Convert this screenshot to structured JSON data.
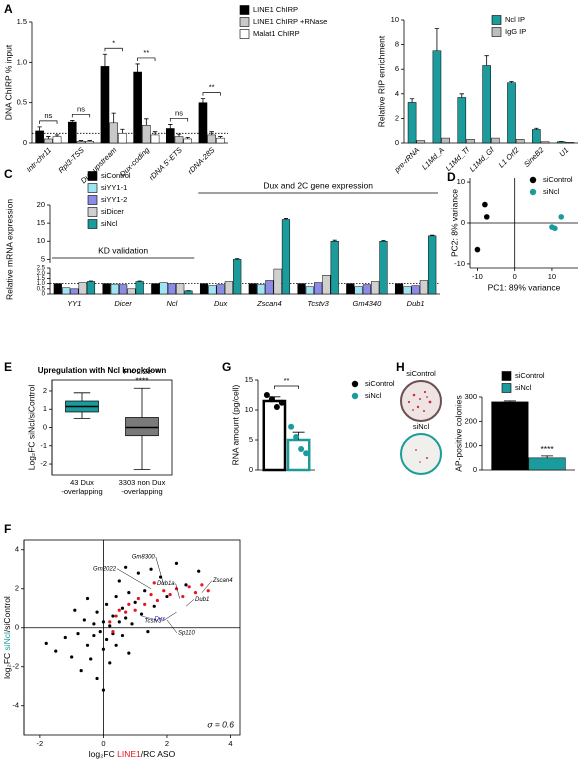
{
  "chart_data": [
    {
      "panel": "A",
      "type": "bar",
      "ylabel": "DNA ChIRP % input",
      "categories": [
        "Intr-chr11",
        "Rpl3-TSS",
        "Dux-upstream",
        "Dux-coding",
        "rDNA 5'-ETS",
        "rDNA-28S"
      ],
      "series": [
        {
          "name": "LINE1 ChIRP",
          "color": "#000000",
          "values": [
            0.15,
            0.26,
            0.95,
            0.88,
            0.18,
            0.5
          ],
          "errors": [
            0.05,
            0.02,
            0.15,
            0.1,
            0.05,
            0.05
          ]
        },
        {
          "name": "LINE1 ChIRP +RNase",
          "color": "#c8c8c8",
          "values": [
            0.05,
            0.02,
            0.25,
            0.22,
            0.08,
            0.1
          ],
          "errors": [
            0.03,
            0.01,
            0.12,
            0.08,
            0.03,
            0.04
          ]
        },
        {
          "name": "Malat1 ChIRP",
          "color": "#ffffff",
          "values": [
            0.08,
            0.02,
            0.12,
            0.1,
            0.05,
            0.06
          ],
          "errors": [
            0.02,
            0.01,
            0.05,
            0.04,
            0.02,
            0.02
          ]
        }
      ],
      "ylim": [
        0,
        1.5
      ],
      "yticks": [
        0,
        0.5,
        {
          "value": 1,
          "label": "1.0"
        },
        1.5
      ],
      "refline": 0.12,
      "significance": [
        "ns",
        "ns",
        "*",
        "**",
        "ns",
        "**"
      ]
    },
    {
      "type": "bar",
      "ylabel": "Relative RIP enrichment",
      "categories": [
        "pre-rRNA",
        "L1Md_A",
        "L1Md_Tf",
        "L1Md_Gf",
        "L1 Orf2",
        "SineB2",
        "U1"
      ],
      "series": [
        {
          "name": "Ncl IP",
          "color": "#1b9b9b",
          "values": [
            3.3,
            7.5,
            3.7,
            6.3,
            4.9,
            1.1,
            0.1
          ],
          "errors": [
            0.3,
            1.8,
            0.3,
            0.8,
            0.1,
            0.1,
            0.02
          ]
        },
        {
          "name": "IgG IP",
          "color": "#bdbdbd",
          "values": [
            0.2,
            0.4,
            0.3,
            0.4,
            0.3,
            0.1,
            0.05
          ]
        }
      ],
      "ylim": [
        0,
        10
      ],
      "yticks": [
        0,
        2,
        4,
        6,
        8,
        10
      ]
    },
    {
      "panel": "C",
      "type": "bar",
      "ylabel": "Relative mRNA expression",
      "categories": [
        "YY1",
        "Dicer",
        "Ncl",
        "Dux",
        "Zscan4",
        "Tcstv3",
        "Gm4340",
        "Dub1"
      ],
      "series": [
        {
          "name": "siControl",
          "color": "#000000",
          "values": [
            1,
            1,
            1,
            1,
            1,
            1,
            1,
            1
          ]
        },
        {
          "name": "siYY1-1",
          "color": "#a0e4f4",
          "values": [
            0.6,
            0.95,
            1.1,
            0.8,
            0.9,
            0.7,
            0.7,
            0.7
          ]
        },
        {
          "name": "siYY1-2",
          "color": "#8c8ce6",
          "values": [
            0.5,
            0.9,
            1.0,
            0.9,
            1.3,
            1.1,
            0.9,
            0.8
          ]
        },
        {
          "name": "siDicer",
          "color": "#d0d0d0",
          "values": [
            1.1,
            0.5,
            1.0,
            1.2,
            2.4,
            1.8,
            1.2,
            1.3
          ]
        },
        {
          "name": "siNcl",
          "color": "#1b9b9b",
          "values": [
            1.2,
            1.2,
            0.3,
            5,
            16,
            10,
            10,
            11.5
          ],
          "errors": [
            0.05,
            0.05,
            0.02,
            0.2,
            0.3,
            0.3,
            0.2,
            0.2
          ]
        }
      ],
      "ylim": [
        0,
        20
      ],
      "ybreak": [
        2.5,
        4
      ],
      "yticks": [
        0,
        0.5,
        {
          "value": 1,
          "label": "1.0"
        },
        1.5,
        {
          "value": 2,
          "label": "2.0"
        },
        2.5,
        5,
        10,
        15,
        20
      ],
      "refline": 1,
      "annotations": [
        "KD validation",
        "Dux and 2C gene expression"
      ]
    },
    {
      "panel": "D",
      "type": "scatter",
      "xlabel": "PC1: 89% variance",
      "ylabel": "PC2: 8% variance",
      "series": [
        {
          "name": "siControl",
          "color": "#000000",
          "x": [
            -8,
            -7.5,
            -10
          ],
          "y": [
            4.5,
            1.5,
            -6.5
          ]
        },
        {
          "name": "siNcl",
          "color": "#1b9b9b",
          "x": [
            10,
            10.8,
            12.5
          ],
          "y": [
            -1,
            -1.3,
            1.5
          ]
        }
      ],
      "xlim": [
        -12,
        17
      ],
      "ylim": [
        -11,
        11
      ],
      "xticks": [
        -10,
        0,
        10
      ],
      "yticks": [
        -10,
        0,
        10
      ]
    },
    {
      "panel": "E",
      "type": "box",
      "title": "Upregulation with Ncl knockdown",
      "ylabel": "Log₂FC siNcl/siControl",
      "categories": [
        [
          "43 Dux",
          "-overlapping"
        ],
        [
          "3303 non Dux",
          "-overlapping"
        ]
      ],
      "boxes": [
        {
          "color": "#1b9b9b",
          "whislo": 0.5,
          "q1": 0.85,
          "med": 1.15,
          "q3": 1.45,
          "whishi": 1.9
        },
        {
          "color": "#7a7a7a",
          "whislo": -2.3,
          "q1": -0.45,
          "med": 0,
          "q3": 0.55,
          "whishi": 2.15
        }
      ],
      "ylim": [
        -2.6,
        2.6
      ],
      "yticks": [
        -2,
        -1,
        0,
        1,
        2
      ],
      "annotations": [
        "P < 2.2e⁻¹⁶",
        "****"
      ]
    },
    {
      "panel": "G",
      "type": "bar",
      "ylabel": "RNA amount (pg/cell)",
      "categories": [
        null
      ],
      "hollow": true,
      "series": [
        {
          "name": "siControl",
          "color": "#000000",
          "values": [
            11.5
          ],
          "errors": [
            0.7
          ],
          "points": [
            12.5,
            11.8,
            10.5,
            11.2
          ]
        },
        {
          "name": "siNcl",
          "color": "#1b9b9b",
          "values": [
            5
          ],
          "errors": [
            1.3
          ],
          "points": [
            7.2,
            5.5,
            3.5,
            2.8
          ]
        }
      ],
      "ylim": [
        0,
        15
      ],
      "yticks": [
        0,
        5,
        10,
        15
      ],
      "significance": [
        "**"
      ]
    },
    {
      "panel": "H",
      "type": "bar",
      "ylabel": "AP-positive colonies",
      "categories": [
        null
      ],
      "dishes": [
        "siControl",
        "siNcl"
      ],
      "series": [
        {
          "name": "siControl",
          "color": "#000000",
          "values": [
            280
          ],
          "errors": [
            4
          ]
        },
        {
          "name": "siNcl",
          "color": "#1b9b9b",
          "values": [
            50
          ],
          "errors": [
            8
          ]
        }
      ],
      "ylim": [
        0,
        300
      ],
      "yticks": [
        0,
        100,
        200,
        300
      ],
      "significance": [
        "****"
      ]
    },
    {
      "panel": "F",
      "type": "scatter",
      "xlabel": [
        "log₂FC ",
        "LINE1",
        "/RC ASO"
      ],
      "ylabel": [
        "log₂FC ",
        "siNcl",
        "/siControl"
      ],
      "series": [
        {
          "color": "#000000",
          "x": [
            -1.5,
            -1.2,
            -1,
            -0.8,
            -0.7,
            -0.6,
            -0.5,
            -0.4,
            -0.3,
            -0.3,
            -0.2,
            -0.2,
            -0.1,
            0,
            0,
            0.1,
            0.1,
            0.2,
            0.2,
            0.3,
            0.3,
            0.4,
            0.4,
            0.5,
            0.5,
            0.6,
            0.6,
            0.7,
            0.8,
            0.8,
            0.9,
            1.0,
            1.1,
            1.2,
            1.3,
            1.5,
            1.6,
            1.8,
            2.0,
            2.3,
            2.6,
            3.0,
            -1.8,
            -0.9,
            0.0,
            0.7,
            -0.5,
            1.4
          ],
          "y": [
            -1.2,
            -0.5,
            -1.5,
            -0.3,
            -2.2,
            0.4,
            -0.9,
            -1.6,
            0.2,
            -0.4,
            -2.6,
            0.8,
            -0.2,
            0.3,
            -1.1,
            1.2,
            -0.6,
            0.1,
            -1.8,
            0.6,
            -0.3,
            1.6,
            -0.9,
            0.3,
            2.4,
            -0.4,
            1.0,
            0.5,
            1.8,
            -1.3,
            0.2,
            1.3,
            2.8,
            0.7,
            1.9,
            3.0,
            1.1,
            2.6,
            1.6,
            3.3,
            2.2,
            2.9,
            -0.8,
            0.9,
            -3.2,
            3.1,
            1.5,
            -0.2
          ]
        },
        {
          "color": "#e8141e",
          "x": [
            0.2,
            0.4,
            0.5,
            0.7,
            0.8,
            1.0,
            1.1,
            1.3,
            1.5,
            1.7,
            1.9,
            2.1,
            2.3,
            2.5,
            2.7,
            2.9,
            3.1,
            3.3,
            0.3,
            1.6
          ],
          "y": [
            0.3,
            0.6,
            0.9,
            0.8,
            1.2,
            0.9,
            1.5,
            1.2,
            1.7,
            1.4,
            1.9,
            1.7,
            2.0,
            1.6,
            2.1,
            1.8,
            2.2,
            1.9,
            -0.2,
            2.3
          ]
        }
      ],
      "gene_labels": [
        {
          "label": "Gm2022",
          "x": 1.5,
          "y": 2.0,
          "color": "#000000"
        },
        {
          "label": "Gm8300",
          "x": 1.9,
          "y": 2.2,
          "color": "#000000"
        },
        {
          "label": "Zscan4",
          "x": 3.1,
          "y": 1.8,
          "color": "#000000"
        },
        {
          "label": "Dub1a",
          "x": 2.4,
          "y": 1.5,
          "color": "#000000"
        },
        {
          "label": "Dub1",
          "x": 2.6,
          "y": 1.1,
          "color": "#000000"
        },
        {
          "label": "Tcstv3",
          "x": 2.3,
          "y": 0.8,
          "color": "#000000"
        },
        {
          "label": "Dux",
          "x": 1.2,
          "y": 0.6,
          "color": "#2020c0"
        },
        {
          "label": "Sp110",
          "x": 2.0,
          "y": 0.4,
          "color": "#000000"
        }
      ],
      "annotation": "σ = 0.6",
      "xlim": [
        -2.5,
        4.3
      ],
      "ylim": [
        -5.5,
        4.5
      ],
      "xticks": [
        -2,
        0,
        2,
        4
      ],
      "yticks": [
        -4,
        -2,
        0,
        2,
        4
      ]
    }
  ]
}
